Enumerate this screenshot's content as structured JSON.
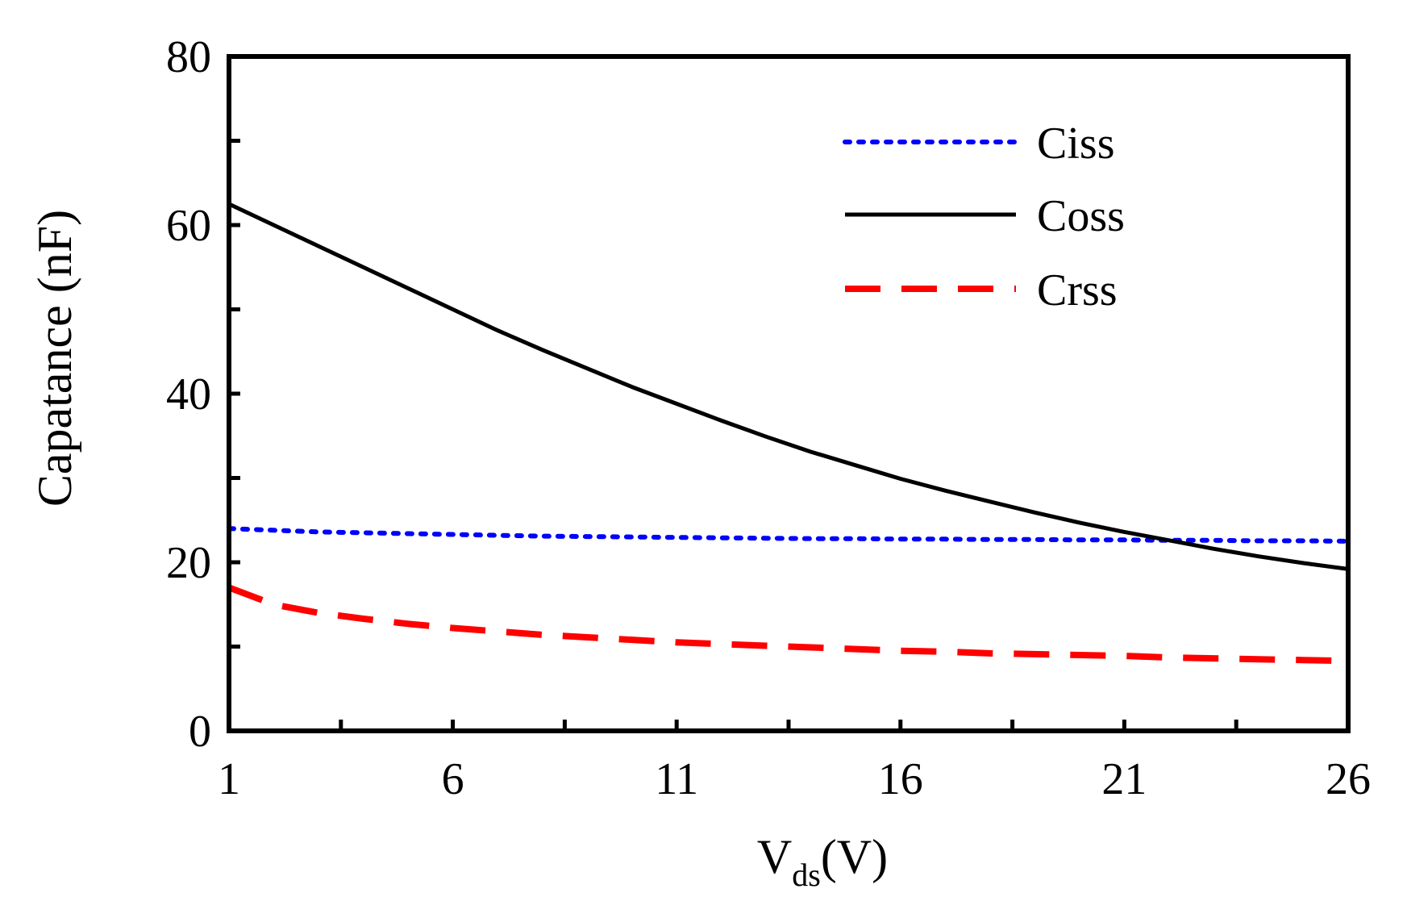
{
  "chart_data": {
    "type": "line",
    "x": [
      1,
      2,
      3,
      4,
      5,
      6,
      7,
      8,
      9,
      10,
      11,
      12,
      13,
      14,
      15,
      16,
      17,
      18,
      19,
      20,
      21,
      22,
      23,
      24,
      25,
      26
    ],
    "series": [
      {
        "name": "Ciss",
        "color": "#0000ff",
        "style": "dotted",
        "values": [
          24.0,
          23.8,
          23.6,
          23.5,
          23.4,
          23.3,
          23.2,
          23.1,
          23.05,
          23.0,
          22.95,
          22.9,
          22.85,
          22.8,
          22.8,
          22.75,
          22.75,
          22.7,
          22.7,
          22.65,
          22.65,
          22.6,
          22.6,
          22.55,
          22.55,
          22.5
        ]
      },
      {
        "name": "Coss",
        "color": "#000000",
        "style": "solid",
        "values": [
          62.5,
          60.0,
          57.5,
          55.0,
          52.5,
          50.0,
          47.5,
          45.2,
          43.0,
          40.8,
          38.8,
          36.8,
          34.9,
          33.1,
          31.5,
          29.9,
          28.5,
          27.2,
          25.9,
          24.7,
          23.6,
          22.6,
          21.6,
          20.7,
          19.9,
          19.2
        ]
      },
      {
        "name": "Crss",
        "color": "#ff0000",
        "style": "dashed",
        "values": [
          17.0,
          15.0,
          14.0,
          13.3,
          12.7,
          12.2,
          11.8,
          11.4,
          11.1,
          10.8,
          10.5,
          10.3,
          10.1,
          9.9,
          9.7,
          9.5,
          9.4,
          9.2,
          9.1,
          9.0,
          8.9,
          8.7,
          8.6,
          8.5,
          8.4,
          8.3
        ]
      }
    ],
    "xlabel_main": "V",
    "xlabel_sub": "ds",
    "xlabel_unit": "(V)",
    "ylabel": "Capatance (nF)",
    "xlim": [
      1,
      26
    ],
    "ylim": [
      0,
      80
    ],
    "xticks": [
      1,
      6,
      11,
      16,
      21,
      26
    ],
    "xtick_labels": [
      "1",
      "6",
      "11",
      "16",
      "21",
      "26"
    ],
    "yticks": [
      0,
      20,
      40,
      60,
      80
    ],
    "ytick_labels": [
      "0",
      "20",
      "40",
      "60",
      "80"
    ],
    "legend_position": "top-right",
    "grid": false
  }
}
